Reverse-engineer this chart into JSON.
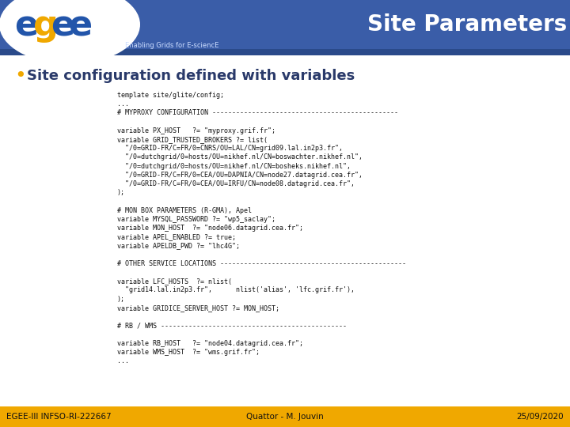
{
  "title": "Site Parameters",
  "subtitle": "Enabling Grids for E-sciencE",
  "bullet": "Site configuration defined with variables",
  "header_bg": "#3a5da8",
  "header_bg2": "#2a4a8a",
  "footer_bg": "#f0a800",
  "white": "#ffffff",
  "footer_left": "EGEE-III INFSO-RI-222667",
  "footer_center": "Quattor - M. Jouvin",
  "footer_right": "25/09/2020",
  "text_color": "#2a3a6a",
  "code_color": "#111111",
  "comment_color": "#111111",
  "code_text": [
    "template site/glite/config;",
    "...",
    "# MYPROXY CONFIGURATION -----------------------------------------------",
    "",
    "variable PX_HOST   ?= \"myproxy.grif.fr\";",
    "variable GRID_TRUSTED_BROKERS ?= list(",
    "  \"/0=GRID-FR/C=FR/0=CNRS/OU=LAL/CN=grid09.lal.in2p3.fr\",",
    "  \"/0=dutchgrid/0=hosts/OU=nikhef.nl/CN=boswachter.nikhef.nl\",",
    "  \"/0=dutchgrid/0=hosts/OU=nikhef.nl/CN=bosheks.nikhef.nl\",",
    "  \"/0=GRID-FR/C=FR/0=CEA/OU=DAPNIA/CN=node27.datagrid.cea.fr\",",
    "  \"/0=GRID-FR/C=FR/0=CEA/OU=IRFU/CN=node08.datagrid.cea.fr\",",
    ");",
    "",
    "# MON BOX PARAMETERS (R-GMA), Apel",
    "variable MYSQL_PASSWORD ?= \"wp5_saclay\";",
    "variable MON_HOST  ?= \"node06.datagrid.cea.fr\";",
    "variable APEL_ENABLED ?= true;",
    "variable APELDB_PWD ?= \"lhc4G\";",
    "",
    "# OTHER SERVICE LOCATIONS -----------------------------------------------",
    "",
    "variable LFC_HOSTS  ?= nlist(",
    "  \"grid14.lal.in2p3.fr\",      nlist('alias', 'lfc.grif.fr'),",
    ");",
    "variable GRIDICE_SERVER_HOST ?= MON_HOST;",
    "",
    "# RB / WMS -----------------------------------------------",
    "",
    "variable RB_HOST   ?= \"node04.datagrid.cea.fr\";",
    "variable WMS_HOST  ?= \"wms.grif.fr\";",
    "..."
  ]
}
